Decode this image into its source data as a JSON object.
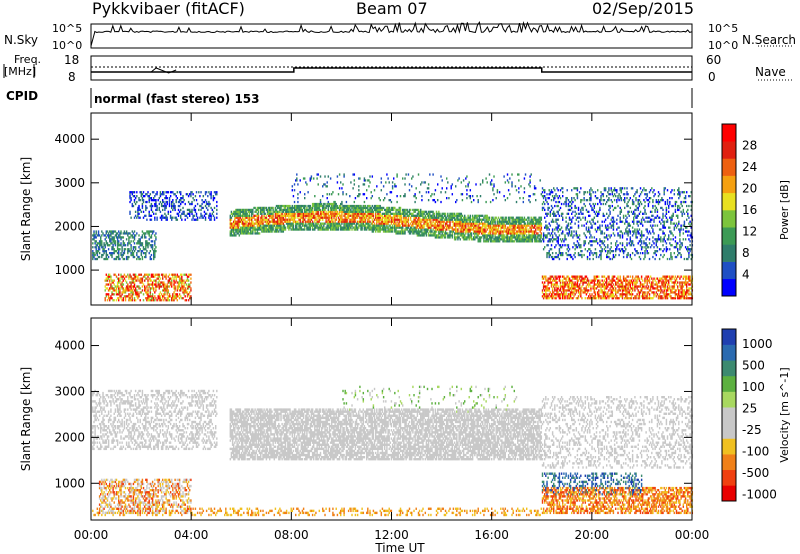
{
  "header": {
    "station": "Pykkvibaer (fitACF)",
    "beam": "Beam 07",
    "date": "02/Sep/2015"
  },
  "strip": {
    "nsky_label": "N.Sky",
    "nsky_ticks": [
      "10^5",
      "10^0"
    ],
    "nsearch_label": "N.Search",
    "nsearch_ticks": [
      "10^5",
      "10^0"
    ],
    "freq_label": "Freq.",
    "freq_unit": "[MHz]",
    "freq_ticks": [
      "18",
      "8"
    ],
    "nave_label": "Nave",
    "nave_ticks": [
      "60",
      "0"
    ],
    "cpid_label": "CPID",
    "cpid_value": "normal (fast stereo) 153"
  },
  "colors": {
    "power_scale": [
      "#0000ff",
      "#1f4fc4",
      "#2f7d6b",
      "#3c9a55",
      "#7cc43c",
      "#e8e020",
      "#f5a010",
      "#ee6010",
      "#e02010",
      "#ff0000"
    ],
    "velocity_scale": [
      "#1f3fb0",
      "#2a6ab0",
      "#3c8a70",
      "#5cb040",
      "#a8d860",
      "#c8c8c8",
      "#c8c8c8",
      "#f0c020",
      "#f08018",
      "#f04010",
      "#e80000"
    ],
    "ground_scatter": "#c8c8c8"
  },
  "chart_data": [
    {
      "type": "line",
      "name": "N.Sky / N.Search",
      "x": [
        0,
        0.2,
        5,
        8,
        12,
        14,
        16,
        18,
        20,
        24
      ],
      "y": [
        1000,
        10000,
        11000,
        12000,
        15000,
        14000,
        13000,
        12500,
        12000,
        11500
      ],
      "yscale": "log",
      "ylim": [
        1,
        100000
      ],
      "ytick_labels": [
        "10^0",
        "10^5"
      ]
    },
    {
      "type": "line",
      "name": "Freq. / Nave",
      "x": [
        0,
        2.5,
        3,
        8,
        8.1,
        18,
        18.1,
        24
      ],
      "freq_mhz": [
        10.7,
        10.7,
        11.0,
        10.7,
        12.3,
        12.3,
        10.7,
        10.7
      ],
      "yticks_left": [
        8,
        18
      ],
      "yticks_right": [
        0,
        60
      ]
    },
    {
      "type": "heatmap",
      "title": "Power",
      "ylabel": "Slant Range [km]",
      "xlabel": "Time UT",
      "colorbar_label": "Power [dB]",
      "colorbar_ticks": [
        4,
        8,
        12,
        16,
        20,
        24,
        28
      ],
      "xlim": [
        0,
        24
      ],
      "ylim": [
        200,
        4600
      ],
      "xticks": [
        "00:00",
        "04:00",
        "08:00",
        "12:00",
        "16:00",
        "20:00",
        "00:00"
      ],
      "yticks": [
        1000,
        2000,
        3000,
        4000
      ],
      "scatter_bands": [
        {
          "t": [
            0,
            2.5
          ],
          "range_km": [
            1100,
            2000
          ],
          "power_db": 8
        },
        {
          "t": [
            0.5,
            4
          ],
          "range_km": [
            300,
            900
          ],
          "power_db": 22
        },
        {
          "t": [
            5.5,
            18
          ],
          "range_km": [
            1700,
            2500
          ],
          "power_db": 16
        },
        {
          "t": [
            18,
            24
          ],
          "range_km": [
            300,
            800
          ],
          "power_db": 24
        },
        {
          "t": [
            18,
            24
          ],
          "range_km": [
            1200,
            2900
          ],
          "power_db": 6
        }
      ]
    },
    {
      "type": "heatmap",
      "title": "Velocity",
      "ylabel": "Slant Range [km]",
      "xlabel": "Time UT",
      "colorbar_label": "Velocity [m s^-1]",
      "colorbar_ticks": [
        1000,
        500,
        100,
        25,
        -25,
        -100,
        -500,
        -1000
      ],
      "xlim": [
        0,
        24
      ],
      "ylim": [
        200,
        4600
      ],
      "xticks": [
        "00:00",
        "04:00",
        "08:00",
        "12:00",
        "16:00",
        "20:00",
        "00:00"
      ],
      "yticks": [
        1000,
        2000,
        3000,
        4000
      ]
    }
  ]
}
